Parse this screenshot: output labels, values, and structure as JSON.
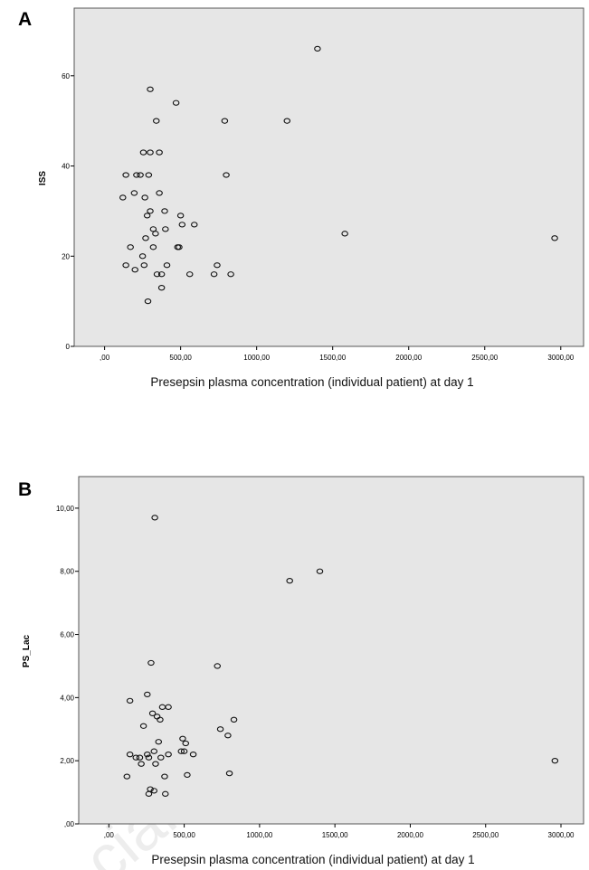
{
  "watermark": "cial use only",
  "chart_data": [
    {
      "panel_letter": "A",
      "type": "scatter",
      "xlabel": "Presepsin plasma concentration (individual patient) at day 1",
      "ylabel": "ISS",
      "xlim": [
        -200,
        3150
      ],
      "ylim": [
        0,
        75
      ],
      "xticks": [
        0,
        500,
        1000,
        1500,
        2000,
        2500,
        3000
      ],
      "xtick_labels": [
        ",00",
        "500,00",
        "1000,00",
        "1500,00",
        "2000,00",
        "2500,00",
        "3000,00"
      ],
      "yticks": [
        0,
        20,
        40,
        60
      ],
      "ytick_labels": [
        "0",
        "20",
        "40",
        "60"
      ],
      "grid": false,
      "points": [
        [
          1400,
          66
        ],
        [
          300,
          57
        ],
        [
          470,
          54
        ],
        [
          340,
          50
        ],
        [
          790,
          50
        ],
        [
          1200,
          50
        ],
        [
          255,
          43
        ],
        [
          300,
          43
        ],
        [
          360,
          43
        ],
        [
          140,
          38
        ],
        [
          210,
          38
        ],
        [
          235,
          38
        ],
        [
          290,
          38
        ],
        [
          800,
          38
        ],
        [
          120,
          33
        ],
        [
          195,
          34
        ],
        [
          265,
          33
        ],
        [
          360,
          34
        ],
        [
          280,
          29
        ],
        [
          300,
          30
        ],
        [
          395,
          30
        ],
        [
          500,
          29
        ],
        [
          320,
          26
        ],
        [
          400,
          26
        ],
        [
          510,
          27
        ],
        [
          590,
          27
        ],
        [
          335,
          25
        ],
        [
          270,
          24
        ],
        [
          1580,
          25
        ],
        [
          2960,
          24
        ],
        [
          170,
          22
        ],
        [
          320,
          22
        ],
        [
          480,
          22
        ],
        [
          490,
          22
        ],
        [
          250,
          20
        ],
        [
          140,
          18
        ],
        [
          260,
          18
        ],
        [
          410,
          18
        ],
        [
          740,
          18
        ],
        [
          200,
          17
        ],
        [
          345,
          16
        ],
        [
          375,
          16
        ],
        [
          560,
          16
        ],
        [
          720,
          16
        ],
        [
          830,
          16
        ],
        [
          375,
          13
        ],
        [
          285,
          10
        ]
      ]
    },
    {
      "panel_letter": "B",
      "type": "scatter",
      "xlabel": "Presepsin plasma concentration (individual patient) at day 1",
      "ylabel": "PS_Lac",
      "xlim": [
        -200,
        3150
      ],
      "ylim": [
        0,
        11
      ],
      "xticks": [
        0,
        500,
        1000,
        1500,
        2000,
        2500,
        3000
      ],
      "xtick_labels": [
        ",00",
        "500,00",
        "1000,00",
        "1500,00",
        "2000,00",
        "2500,00",
        "3000,00"
      ],
      "yticks": [
        0,
        2,
        4,
        6,
        8,
        10
      ],
      "ytick_labels": [
        ",00",
        "2,00",
        "4,00",
        "6,00",
        "8,00",
        "10,00"
      ],
      "grid": false,
      "points": [
        [
          305,
          9.7
        ],
        [
          1400,
          8.0
        ],
        [
          1200,
          7.7
        ],
        [
          280,
          5.1
        ],
        [
          720,
          5.0
        ],
        [
          140,
          3.9
        ],
        [
          255,
          4.1
        ],
        [
          355,
          3.7
        ],
        [
          395,
          3.7
        ],
        [
          290,
          3.5
        ],
        [
          320,
          3.4
        ],
        [
          340,
          3.3
        ],
        [
          830,
          3.3
        ],
        [
          230,
          3.1
        ],
        [
          740,
          3.0
        ],
        [
          790,
          2.8
        ],
        [
          490,
          2.7
        ],
        [
          330,
          2.6
        ],
        [
          510,
          2.55
        ],
        [
          300,
          2.3
        ],
        [
          480,
          2.3
        ],
        [
          500,
          2.3
        ],
        [
          140,
          2.2
        ],
        [
          255,
          2.2
        ],
        [
          395,
          2.2
        ],
        [
          560,
          2.2
        ],
        [
          180,
          2.1
        ],
        [
          205,
          2.1
        ],
        [
          265,
          2.1
        ],
        [
          345,
          2.1
        ],
        [
          2960,
          2.0
        ],
        [
          215,
          1.9
        ],
        [
          310,
          1.9
        ],
        [
          800,
          1.6
        ],
        [
          120,
          1.5
        ],
        [
          370,
          1.5
        ],
        [
          520,
          1.55
        ],
        [
          275,
          1.1
        ],
        [
          300,
          1.05
        ],
        [
          265,
          0.95
        ],
        [
          375,
          0.95
        ]
      ]
    }
  ]
}
